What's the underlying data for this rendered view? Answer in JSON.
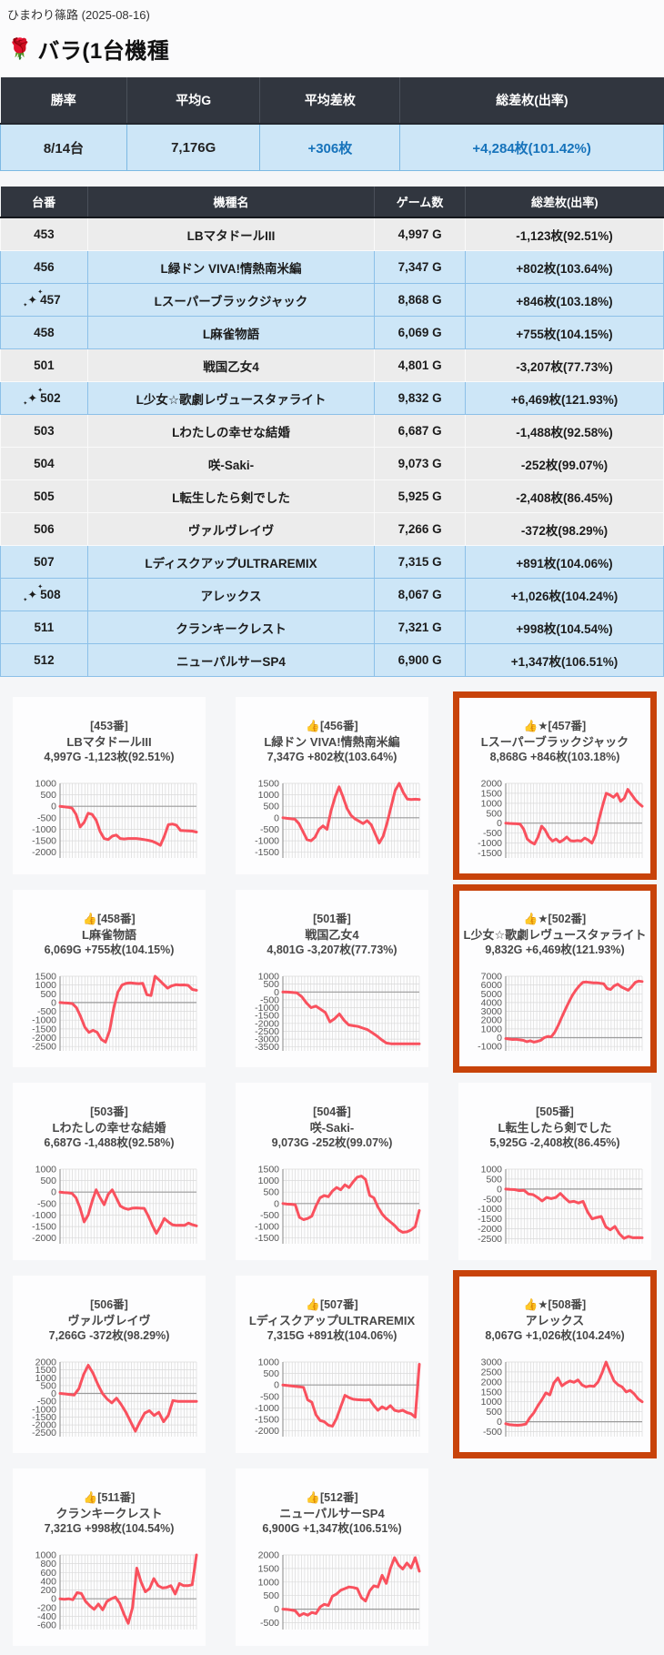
{
  "page": {
    "title": "ひまわり篠路 (2025-08-16)",
    "heading_icon": "🌹",
    "heading": "バラ(1台機種"
  },
  "summary": {
    "headers": [
      "勝率",
      "平均G",
      "平均差枚",
      "総差枚(出率)"
    ],
    "values": [
      {
        "text": "8/14台",
        "blue": false
      },
      {
        "text": "7,176G",
        "blue": false
      },
      {
        "text": "+306枚",
        "blue": true
      },
      {
        "text": "+4,284枚(101.42%)",
        "blue": true
      }
    ]
  },
  "table": {
    "headers": [
      "台番",
      "機種名",
      "ゲーム数",
      "総差枚(出率)"
    ],
    "rows": [
      {
        "no": "453",
        "star": false,
        "name": "LBマタドールIII",
        "games": "4,997 G",
        "diff": "-1,123枚(92.51%)",
        "positive": false
      },
      {
        "no": "456",
        "star": false,
        "name": "L緑ドン VIVA!情熱南米編",
        "games": "7,347 G",
        "diff": "+802枚(103.64%)",
        "positive": true
      },
      {
        "no": "457",
        "star": true,
        "name": "Lスーパーブラックジャック",
        "games": "8,868 G",
        "diff": "+846枚(103.18%)",
        "positive": true
      },
      {
        "no": "458",
        "star": false,
        "name": "L麻雀物語",
        "games": "6,069 G",
        "diff": "+755枚(104.15%)",
        "positive": true
      },
      {
        "no": "501",
        "star": false,
        "name": "戦国乙女4",
        "games": "4,801 G",
        "diff": "-3,207枚(77.73%)",
        "positive": false
      },
      {
        "no": "502",
        "star": true,
        "name": "L少女☆歌劇レヴュースタァライト",
        "games": "9,832 G",
        "diff": "+6,469枚(121.93%)",
        "positive": true
      },
      {
        "no": "503",
        "star": false,
        "name": "Lわたしの幸せな結婚",
        "games": "6,687 G",
        "diff": "-1,488枚(92.58%)",
        "positive": false
      },
      {
        "no": "504",
        "star": false,
        "name": "咲-Saki-",
        "games": "9,073 G",
        "diff": "-252枚(99.07%)",
        "positive": false
      },
      {
        "no": "505",
        "star": false,
        "name": "L転生したら剣でした",
        "games": "5,925 G",
        "diff": "-2,408枚(86.45%)",
        "positive": false
      },
      {
        "no": "506",
        "star": false,
        "name": "ヴァルヴレイヴ",
        "games": "7,266 G",
        "diff": "-372枚(98.29%)",
        "positive": false
      },
      {
        "no": "507",
        "star": false,
        "name": "LディスクアップULTRAREMIX",
        "games": "7,315 G",
        "diff": "+891枚(104.06%)",
        "positive": true
      },
      {
        "no": "508",
        "star": true,
        "name": "アレックス",
        "games": "8,067 G",
        "diff": "+1,026枚(104.24%)",
        "positive": true
      },
      {
        "no": "511",
        "star": false,
        "name": "クランキークレスト",
        "games": "7,321 G",
        "diff": "+998枚(104.54%)",
        "positive": true
      },
      {
        "no": "512",
        "star": false,
        "name": "ニューパルサーSP4",
        "games": "6,900 G",
        "diff": "+1,347枚(106.51%)",
        "positive": true
      }
    ]
  },
  "chart_data": [
    {
      "type": "line",
      "machine": "453",
      "badge": "",
      "label": "[453番]",
      "name": "LBマタドールIII",
      "stats": "4,997G -1,123枚(92.51%)",
      "highlight": false,
      "yticks": [
        1000,
        500,
        0,
        -500,
        -1000,
        -1500,
        -2000
      ],
      "values": [
        0,
        -20,
        -40,
        -80,
        -350,
        -900,
        -700,
        -300,
        -350,
        -600,
        -1100,
        -1400,
        -1450,
        -1300,
        -1250,
        -1400,
        -1420,
        -1400,
        -1400,
        -1400,
        -1420,
        -1450,
        -1480,
        -1520,
        -1600,
        -1700,
        -1300,
        -800,
        -770,
        -820,
        -1050,
        -1060,
        -1070,
        -1080,
        -1120
      ]
    },
    {
      "type": "line",
      "machine": "456",
      "badge": "👍",
      "label": "[456番]",
      "name": "L緑ドン VIVA!情熱南米編",
      "stats": "7,347G +802枚(103.64%)",
      "highlight": false,
      "yticks": [
        1500,
        1000,
        500,
        0,
        -500,
        -1000,
        -1500
      ],
      "values": [
        0,
        -20,
        -40,
        -60,
        -250,
        -600,
        -950,
        -1000,
        -850,
        -500,
        -350,
        -500,
        300,
        900,
        1350,
        900,
        400,
        100,
        -50,
        -150,
        -250,
        -120,
        -300,
        -700,
        -1100,
        -800,
        -200,
        500,
        1200,
        1500,
        1100,
        820,
        800,
        810,
        800
      ]
    },
    {
      "type": "line",
      "machine": "457",
      "badge": "👍★",
      "label": "[457番]",
      "name": "Lスーパーブラックジャック",
      "stats": "8,868G +846枚(103.18%)",
      "highlight": true,
      "yticks": [
        2000,
        1500,
        1000,
        500,
        0,
        -500,
        -1000,
        -1500
      ],
      "values": [
        0,
        -10,
        -20,
        -30,
        -50,
        -300,
        -800,
        -950,
        -1050,
        -700,
        -150,
        -350,
        -700,
        -900,
        -800,
        -950,
        -850,
        -700,
        -880,
        -900,
        -870,
        -900,
        -750,
        -850,
        -1000,
        -600,
        200,
        900,
        1500,
        1420,
        1300,
        1480,
        1100,
        1250,
        1700,
        1450,
        1200,
        1000,
        850
      ]
    },
    {
      "type": "line",
      "machine": "458",
      "badge": "👍",
      "label": "[458番]",
      "name": "L麻雀物語",
      "stats": "6,069G +755枚(104.15%)",
      "highlight": false,
      "yticks": [
        1500,
        1000,
        500,
        0,
        -500,
        -1000,
        -1500,
        -2000,
        -2500
      ],
      "values": [
        0,
        -20,
        -30,
        -60,
        -300,
        -800,
        -1400,
        -1700,
        -1580,
        -1700,
        -2100,
        -2250,
        -1600,
        -300,
        600,
        1000,
        1100,
        1120,
        1100,
        1080,
        1100,
        450,
        400,
        1500,
        1280,
        1050,
        820,
        950,
        1020,
        1000,
        1010,
        980,
        750,
        700
      ]
    },
    {
      "type": "line",
      "machine": "501",
      "badge": "",
      "label": "[501番]",
      "name": "戦国乙女4",
      "stats": "4,801G -3,207枚(77.73%)",
      "highlight": false,
      "yticks": [
        1000,
        500,
        0,
        -500,
        -1000,
        -1500,
        -2000,
        -2500,
        -3000,
        -3500
      ],
      "values": [
        0,
        -10,
        -30,
        -60,
        -300,
        -700,
        -1000,
        -900,
        -1100,
        -1300,
        -1900,
        -1700,
        -1400,
        -1800,
        -2100,
        -2150,
        -2200,
        -2300,
        -2400,
        -2600,
        -2800,
        -3050,
        -3250,
        -3300,
        -3300,
        -3300,
        -3300,
        -3300,
        -3300,
        -3300
      ]
    },
    {
      "type": "line",
      "machine": "502",
      "badge": "👍★",
      "label": "[502番]",
      "name": "L少女☆歌劇レヴュースタァライト",
      "stats": "9,832G +6,469枚(121.93%)",
      "highlight": true,
      "yticks": [
        7000,
        6000,
        5000,
        4000,
        3000,
        2000,
        1000,
        0,
        -1000
      ],
      "values": [
        -100,
        -150,
        -200,
        -180,
        -250,
        -300,
        -450,
        -350,
        -500,
        -420,
        -300,
        0,
        150,
        100,
        600,
        1400,
        2300,
        3200,
        4000,
        4800,
        5400,
        5900,
        6300,
        6350,
        6300,
        6250,
        6250,
        6200,
        6150,
        5600,
        5500,
        5900,
        6100,
        5800,
        5600,
        5400,
        5800,
        6300,
        6450,
        6400
      ]
    },
    {
      "type": "line",
      "machine": "503",
      "badge": "",
      "label": "[503番]",
      "name": "Lわたしの幸せな結婚",
      "stats": "6,687G -1,488枚(92.58%)",
      "highlight": false,
      "yticks": [
        1000,
        500,
        0,
        -500,
        -1000,
        -1500,
        -2000
      ],
      "values": [
        0,
        -20,
        -30,
        -60,
        -250,
        -700,
        -1300,
        -1000,
        -400,
        100,
        -250,
        -550,
        -100,
        100,
        -250,
        -600,
        -700,
        -750,
        -700,
        -690,
        -700,
        -710,
        -1050,
        -1450,
        -1800,
        -1500,
        -1150,
        -1300,
        -1420,
        -1450,
        -1440,
        -1450,
        -1350,
        -1420,
        -1470
      ]
    },
    {
      "type": "line",
      "machine": "504",
      "badge": "",
      "label": "[504番]",
      "name": "咲-Saki-",
      "stats": "9,073G -252枚(99.07%)",
      "highlight": false,
      "yticks": [
        1500,
        1000,
        500,
        0,
        -500,
        -1000,
        -1500
      ],
      "values": [
        0,
        -20,
        -30,
        -50,
        -600,
        -700,
        -650,
        -550,
        -100,
        250,
        350,
        300,
        550,
        700,
        600,
        820,
        700,
        950,
        1150,
        1200,
        1050,
        350,
        250,
        -150,
        -450,
        -650,
        -800,
        -950,
        -1150,
        -1250,
        -1230,
        -1150,
        -1000,
        -300
      ]
    },
    {
      "type": "line",
      "machine": "505",
      "badge": "",
      "label": "[505番]",
      "name": "L転生したら剣でした",
      "stats": "5,925G -2,408枚(86.45%)",
      "highlight": false,
      "yticks": [
        1000,
        500,
        0,
        -500,
        -1000,
        -1500,
        -2000,
        -2500
      ],
      "values": [
        0,
        -20,
        -30,
        -80,
        -60,
        -250,
        -280,
        -420,
        -600,
        -420,
        -480,
        -420,
        -220,
        -450,
        -650,
        -620,
        -700,
        -620,
        -1150,
        -1500,
        -1430,
        -1380,
        -1900,
        -2050,
        -1880,
        -2250,
        -2480,
        -2380,
        -2450,
        -2440,
        -2450
      ]
    },
    {
      "type": "line",
      "machine": "506",
      "badge": "",
      "label": "[506番]",
      "name": "ヴァルヴレイヴ",
      "stats": "7,266G -372枚(98.29%)",
      "highlight": false,
      "yticks": [
        2000,
        1500,
        1000,
        500,
        0,
        -500,
        -1000,
        -1500,
        -2000,
        -2500
      ],
      "values": [
        0,
        -30,
        -60,
        -100,
        300,
        1200,
        1800,
        1300,
        600,
        0,
        -350,
        -600,
        -300,
        -700,
        -1200,
        -1800,
        -2400,
        -1800,
        -1250,
        -1100,
        -1400,
        -1200,
        -1800,
        -1400,
        -450,
        -500,
        -500,
        -500,
        -500,
        -500
      ]
    },
    {
      "type": "line",
      "machine": "507",
      "badge": "👍",
      "label": "[507番]",
      "name": "LディスクアップULTRAREMIX",
      "stats": "7,315G +891枚(104.06%)",
      "highlight": false,
      "yticks": [
        1000,
        500,
        0,
        -500,
        -1000,
        -1500,
        -2000
      ],
      "values": [
        0,
        -20,
        -40,
        -60,
        -80,
        -100,
        -650,
        -750,
        -1300,
        -1550,
        -1600,
        -1750,
        -1800,
        -1450,
        -950,
        -450,
        -550,
        -620,
        -640,
        -650,
        -660,
        -640,
        -900,
        -1100,
        -950,
        -1050,
        -900,
        -1100,
        -1150,
        -1100,
        -1200,
        -1250,
        -1400,
        900
      ]
    },
    {
      "type": "line",
      "machine": "508",
      "badge": "👍★",
      "label": "[508番]",
      "name": "アレックス",
      "stats": "8,067G +1,026枚(104.24%)",
      "highlight": true,
      "yticks": [
        3000,
        2500,
        2000,
        1500,
        1000,
        500,
        0,
        -500
      ],
      "values": [
        -100,
        -150,
        -170,
        -180,
        -160,
        -120,
        200,
        450,
        800,
        1100,
        1450,
        1350,
        1950,
        2200,
        1800,
        1950,
        2050,
        1980,
        2100,
        1850,
        1750,
        1800,
        1780,
        2000,
        2450,
        3000,
        2500,
        2050,
        1850,
        1750,
        1500,
        1580,
        1400,
        1150,
        1000
      ]
    },
    {
      "type": "line",
      "machine": "511",
      "badge": "👍",
      "label": "[511番]",
      "name": "クランキークレスト",
      "stats": "7,321G +998枚(104.54%)",
      "highlight": false,
      "yticks": [
        1000,
        800,
        600,
        400,
        200,
        0,
        -200,
        -400,
        -600
      ],
      "values": [
        0,
        -10,
        0,
        -20,
        140,
        120,
        -60,
        -160,
        -240,
        -120,
        -250,
        -60,
        0,
        40,
        -100,
        -350,
        -560,
        -200,
        700,
        380,
        160,
        230,
        460,
        300,
        250,
        260,
        300,
        110,
        350,
        300,
        300,
        320,
        1000
      ]
    },
    {
      "type": "line",
      "machine": "512",
      "badge": "👍",
      "label": "[512番]",
      "name": "ニューパルサーSP4",
      "stats": "6,900G +1,347枚(106.51%)",
      "highlight": false,
      "yticks": [
        2000,
        1500,
        1000,
        500,
        0,
        -500
      ],
      "values": [
        0,
        -10,
        -30,
        -60,
        -240,
        -160,
        -220,
        -120,
        -160,
        80,
        180,
        140,
        480,
        560,
        700,
        760,
        820,
        800,
        760,
        420,
        300,
        680,
        860,
        820,
        1250,
        950,
        1500,
        1900,
        1620,
        1480,
        1700,
        1520,
        1900,
        1400
      ]
    }
  ],
  "colors": {
    "header_bg": "#31363f",
    "row_positive": "#cde6f7",
    "row_negative": "#ececec",
    "blue_text": "#1673bb",
    "line_red": "#f9515e",
    "highlight_orange": "#c8430a",
    "grid_line": "#dadada",
    "axis_line": "#9a9a9a"
  }
}
